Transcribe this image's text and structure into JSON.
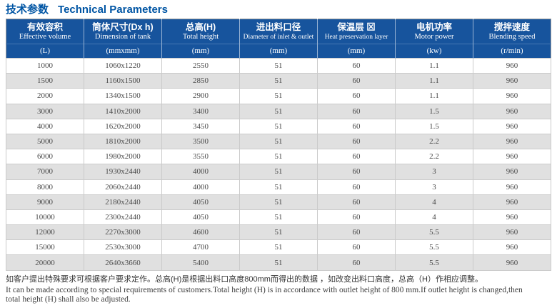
{
  "title": {
    "cn": "技术参数",
    "en": "Technical Parameters"
  },
  "table": {
    "columns": [
      {
        "cn": "有效容积",
        "en": "Effective volume",
        "unit": "(L)"
      },
      {
        "cn": "筒体尺寸(Dx h)",
        "en": "Dimension of tank",
        "unit": "(mmxmm)"
      },
      {
        "cn": "总高(H)",
        "en": "Total height",
        "unit": "(mm)"
      },
      {
        "cn": "进出料口径",
        "en": "Diameter of inlet & outlet",
        "unit": "(mm)"
      },
      {
        "cn": "保温层 ⊠",
        "en": "Heat preservation layer",
        "unit": "(mm)"
      },
      {
        "cn": "电机功率",
        "en": "Motor power",
        "unit": "(kw)"
      },
      {
        "cn": "搅拌速度",
        "en": "Blending speed",
        "unit": "(r/min)"
      }
    ],
    "rows": [
      [
        "1000",
        "1060x1220",
        "2550",
        "51",
        "60",
        "1.1",
        "960"
      ],
      [
        "1500",
        "1160x1500",
        "2850",
        "51",
        "60",
        "1.1",
        "960"
      ],
      [
        "2000",
        "1340x1500",
        "2900",
        "51",
        "60",
        "1.1",
        "960"
      ],
      [
        "3000",
        "1410x2000",
        "3400",
        "51",
        "60",
        "1.5",
        "960"
      ],
      [
        "4000",
        "1620x2000",
        "3450",
        "51",
        "60",
        "1.5",
        "960"
      ],
      [
        "5000",
        "1810x2000",
        "3500",
        "51",
        "60",
        "2.2",
        "960"
      ],
      [
        "6000",
        "1980x2000",
        "3550",
        "51",
        "60",
        "2.2",
        "960"
      ],
      [
        "7000",
        "1930x2440",
        "4000",
        "51",
        "60",
        "3",
        "960"
      ],
      [
        "8000",
        "2060x2440",
        "4000",
        "51",
        "60",
        "3",
        "960"
      ],
      [
        "9000",
        "2180x2440",
        "4050",
        "51",
        "60",
        "4",
        "960"
      ],
      [
        "10000",
        "2300x2440",
        "4050",
        "51",
        "60",
        "4",
        "960"
      ],
      [
        "12000",
        "2270x3000",
        "4600",
        "51",
        "60",
        "5.5",
        "960"
      ],
      [
        "15000",
        "2530x3000",
        "4700",
        "51",
        "60",
        "5.5",
        "960"
      ],
      [
        "20000",
        "2640x3660",
        "5400",
        "51",
        "60",
        "5.5",
        "960"
      ]
    ]
  },
  "footer": {
    "line1_cn": "如客户提出特殊要求可根据客户要求定作。总高(H)是根据出料口高度800mm而得出的数据 ，如改变出料口高度，总高（H）作相应调整。",
    "line2_en": "It can be made according to special requirements of customers.Total height (H) is in accordance with outlet height of 800 mm.If outlet height is changed,then",
    "line3_en": "total height (H) shall also be adjusted."
  },
  "colors": {
    "header_blue": "#17549d",
    "title_blue": "#0055a4",
    "row_alt": "#e0e0e0"
  }
}
